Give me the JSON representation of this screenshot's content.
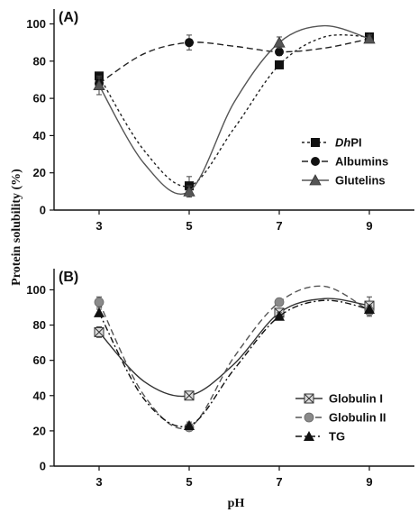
{
  "ylabel": "Protein solubility (%)",
  "xlabel": "pH",
  "chart_data": [
    {
      "panel": "(A)",
      "type": "line",
      "x_ticks": [
        3,
        5,
        7,
        9
      ],
      "y_ticks": [
        0,
        20,
        40,
        60,
        80,
        100
      ],
      "xlim": [
        2,
        10
      ],
      "ylim": [
        0,
        108
      ],
      "legend": "right",
      "series": [
        {
          "name_italic": "Dh",
          "name_rest": "PI",
          "marker": "square",
          "dash": "dot",
          "color": "#222222",
          "x": [
            3,
            5,
            7,
            9
          ],
          "y": [
            72,
            13,
            78,
            93
          ],
          "err": [
            2,
            5,
            2,
            2
          ],
          "curve_x": [
            3,
            4,
            5,
            6,
            7,
            8,
            9
          ],
          "curve_y": [
            72,
            32,
            13,
            44,
            78,
            93,
            93
          ]
        },
        {
          "name": "Albumins",
          "marker": "circle",
          "dash": "dash",
          "color": "#222222",
          "x": [
            3,
            5,
            7,
            9
          ],
          "y": [
            68,
            90,
            85,
            92
          ],
          "err": [
            3,
            4,
            2,
            2
          ],
          "curve_x": [
            3,
            4,
            5,
            6,
            7,
            8,
            9
          ],
          "curve_y": [
            68,
            84,
            90,
            88,
            85,
            87,
            92
          ]
        },
        {
          "name": "Glutelins",
          "marker": "triangle",
          "dash": "solid",
          "color": "#555555",
          "x": [
            3,
            5,
            7,
            9
          ],
          "y": [
            67,
            10,
            90,
            92
          ],
          "err": [
            5,
            3,
            3,
            2
          ],
          "curve_x": [
            3,
            4,
            5,
            6,
            7,
            8,
            9
          ],
          "curve_y": [
            67,
            25,
            10,
            58,
            90,
            99,
            92
          ]
        }
      ]
    },
    {
      "panel": "(B)",
      "type": "line",
      "x_ticks": [
        3,
        5,
        7,
        9
      ],
      "y_ticks": [
        0,
        20,
        40,
        60,
        80,
        100
      ],
      "xlim": [
        2,
        10
      ],
      "ylim": [
        0,
        112
      ],
      "legend": "bottom-right",
      "series": [
        {
          "name": "Globulin I",
          "marker": "crossbox",
          "dash": "solid",
          "color": "#333333",
          "x": [
            3,
            5,
            7,
            9
          ],
          "y": [
            76,
            40,
            87,
            91
          ],
          "err": [
            3,
            2,
            2,
            5
          ],
          "curve_x": [
            3,
            4,
            5,
            6,
            7,
            8,
            9
          ],
          "curve_y": [
            76,
            48,
            40,
            58,
            87,
            95,
            91
          ]
        },
        {
          "name": "Globulin II",
          "marker": "circle-gray",
          "dash": "dash",
          "color": "#555555",
          "x": [
            3,
            5,
            7,
            9
          ],
          "y": [
            93,
            22,
            93,
            88
          ],
          "err": [
            3,
            2,
            2,
            3
          ],
          "curve_x": [
            3,
            4,
            5,
            6,
            7,
            8,
            9
          ],
          "curve_y": [
            93,
            40,
            22,
            62,
            93,
            102,
            88
          ]
        },
        {
          "name": "TG",
          "marker": "triangle-black",
          "dash": "dashdot",
          "color": "#111111",
          "x": [
            3,
            5,
            7,
            9
          ],
          "y": [
            87,
            23,
            85,
            89
          ],
          "err": [
            2,
            2,
            2,
            2
          ],
          "curve_x": [
            3,
            4,
            5,
            6,
            7,
            8,
            9
          ],
          "curve_y": [
            87,
            38,
            23,
            55,
            85,
            94,
            89
          ]
        }
      ]
    }
  ]
}
